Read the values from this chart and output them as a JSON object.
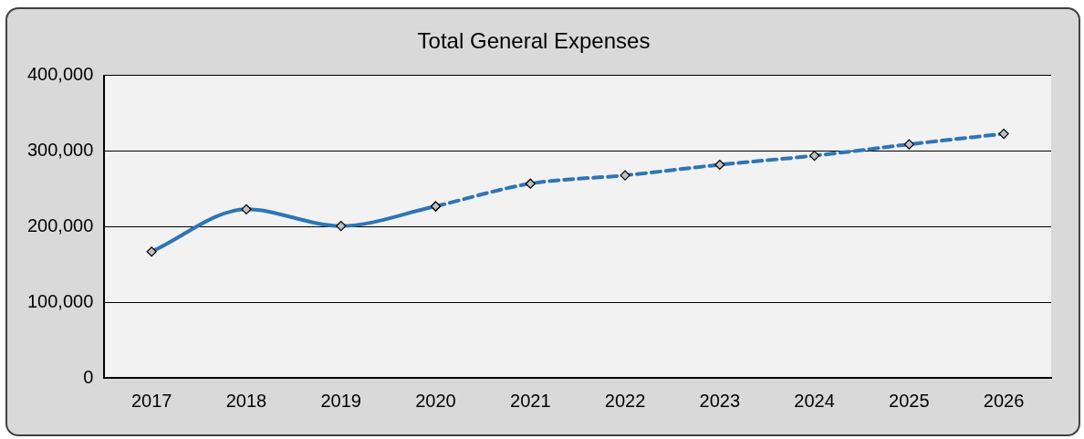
{
  "chart_data": {
    "type": "line",
    "title": "Total General Expenses",
    "categories": [
      "2017",
      "2018",
      "2019",
      "2020",
      "2021",
      "2022",
      "2023",
      "2024",
      "2025",
      "2026"
    ],
    "series": [
      {
        "color": "#2e75b6",
        "line_style": "solid",
        "values": [
          167000,
          223000,
          201000,
          227000,
          null,
          null,
          null,
          null,
          null,
          null
        ]
      },
      {
        "color": "#2e75b6",
        "line_style": "dashed",
        "values": [
          null,
          null,
          null,
          227000,
          257000,
          268000,
          282000,
          294000,
          309000,
          323000
        ]
      }
    ],
    "ylim": [
      0,
      400000
    ],
    "yticks": [
      0,
      {
        "value": 100000,
        "label": "100,000"
      },
      {
        "value": 200000,
        "label": "200,000"
      },
      {
        "value": 300000,
        "label": "300,000"
      },
      {
        "value": 400000,
        "label": "400,000"
      }
    ],
    "grid": "y",
    "legend": false,
    "marker": "diamond"
  }
}
